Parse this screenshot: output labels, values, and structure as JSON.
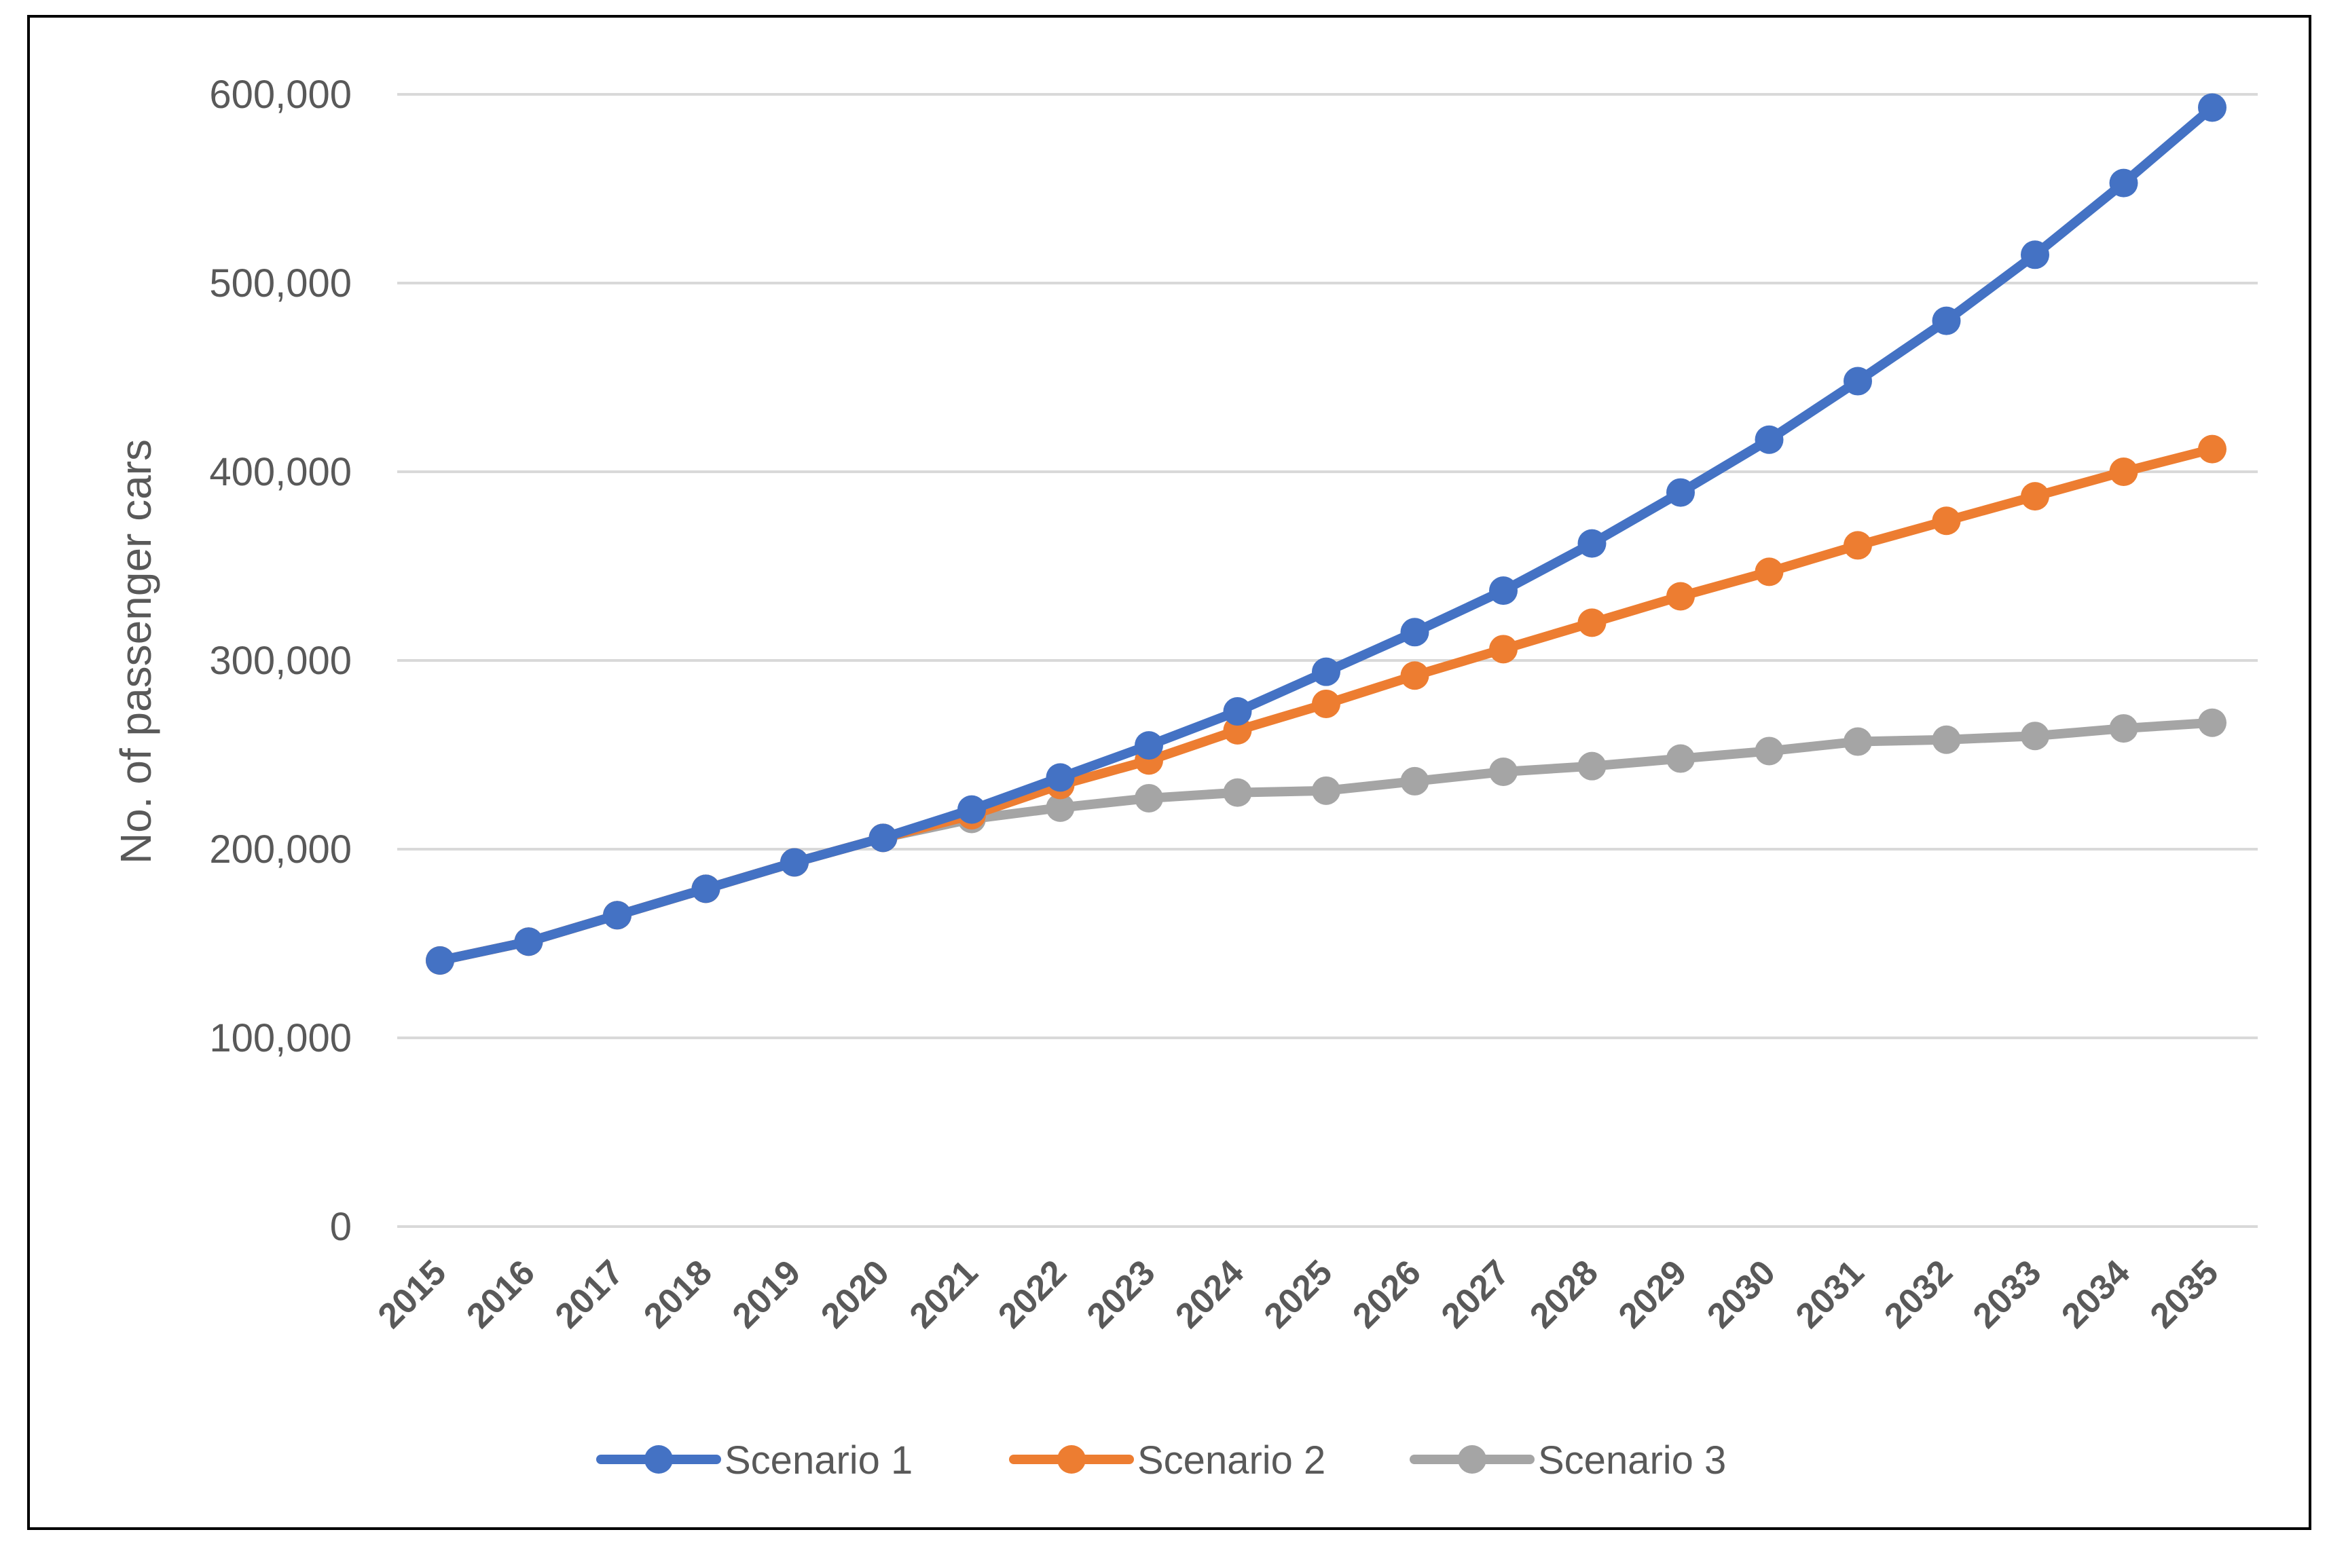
{
  "chart_data": {
    "type": "line",
    "title": "",
    "xlabel": "",
    "ylabel": "No. of passenger cars",
    "ylim": [
      0,
      600000
    ],
    "yticks": [
      0,
      100000,
      200000,
      300000,
      400000,
      500000,
      600000
    ],
    "ytick_labels": [
      "0",
      "100,000",
      "200,000",
      "300,000",
      "400,000",
      "500,000",
      "600,000"
    ],
    "categories": [
      "2015",
      "2016",
      "2017",
      "2018",
      "2019",
      "2020",
      "2021",
      "2022",
      "2023",
      "2024",
      "2025",
      "2026",
      "2027",
      "2028",
      "2029",
      "2030",
      "2031",
      "2032",
      "2033",
      "2034",
      "2035"
    ],
    "grid": true,
    "legend_position": "bottom",
    "series": [
      {
        "name": "Scenario 1",
        "color": "#4472C4",
        "values": [
          141000,
          151000,
          165000,
          179000,
          193000,
          206000,
          221000,
          238000,
          255000,
          273000,
          294000,
          315000,
          337000,
          362000,
          389000,
          417000,
          448000,
          480000,
          515000,
          553000,
          593000
        ]
      },
      {
        "name": "Scenario 2",
        "color": "#ED7D31",
        "values": [
          141000,
          151000,
          165000,
          179000,
          193000,
          206000,
          218000,
          234000,
          247000,
          263000,
          277000,
          292000,
          306000,
          320000,
          334000,
          347000,
          361000,
          374000,
          387000,
          400000,
          412000
        ]
      },
      {
        "name": "Scenario 3",
        "color": "#A5A5A5",
        "values": [
          141000,
          151000,
          165000,
          179000,
          193000,
          206000,
          216000,
          222000,
          227000,
          230000,
          231000,
          236000,
          241000,
          244000,
          248000,
          252000,
          257000,
          258000,
          260000,
          264000,
          267000
        ]
      }
    ]
  }
}
